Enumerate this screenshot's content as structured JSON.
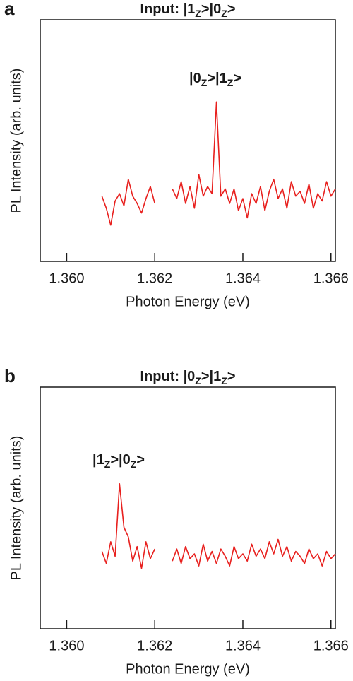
{
  "chart_data": [
    {
      "type": "line",
      "panel_label": "a",
      "title": "Input: |1Z>|0Z>",
      "annotation": "|0Z>|1Z>",
      "xlabel": "Photon Energy (eV)",
      "ylabel": "PL Intensity (arb. units)",
      "xlim": [
        1.3594,
        1.3661
      ],
      "ylim": [
        0,
        1
      ],
      "xticks": [
        {
          "value": 1.36,
          "label": "1.360"
        },
        1.362,
        1.364,
        1.366
      ],
      "x": [
        1.3608,
        1.3609,
        1.361,
        1.3611,
        1.3612,
        1.3613,
        1.3614,
        1.3615,
        1.3616,
        1.3617,
        1.3618,
        1.3619,
        1.362,
        1.3622,
        1.3624,
        1.3625,
        1.3626,
        1.3627,
        1.3628,
        1.3629,
        1.363,
        1.3631,
        1.3632,
        1.3633,
        1.3634,
        1.3635,
        1.3636,
        1.3637,
        1.3638,
        1.3639,
        1.364,
        1.3641,
        1.3642,
        1.3643,
        1.3644,
        1.3645,
        1.3646,
        1.3647,
        1.3648,
        1.3649,
        1.365,
        1.3651,
        1.3652,
        1.3653,
        1.3654,
        1.3655,
        1.3656,
        1.3657,
        1.3658,
        1.3659,
        1.366,
        1.3661
      ],
      "series": [
        {
          "color": "#e8201e",
          "values": [
            0.27,
            0.22,
            0.15,
            0.25,
            0.28,
            0.23,
            0.34,
            0.27,
            0.24,
            0.2,
            0.26,
            0.31,
            0.24,
            null,
            0.3,
            0.26,
            0.33,
            0.24,
            0.31,
            0.22,
            0.36,
            0.27,
            0.31,
            0.28,
            0.66,
            0.27,
            0.3,
            0.24,
            0.3,
            0.21,
            0.26,
            0.18,
            0.28,
            0.24,
            0.31,
            0.21,
            0.29,
            0.34,
            0.26,
            0.3,
            0.22,
            0.33,
            0.27,
            0.29,
            0.24,
            0.32,
            0.22,
            0.28,
            0.25,
            0.33,
            0.27,
            0.3
          ]
        }
      ]
    },
    {
      "type": "line",
      "panel_label": "b",
      "title": "Input: |0Z>|1Z>",
      "annotation": "|1Z>|0Z>",
      "xlabel": "Photon Energy (eV)",
      "ylabel": "PL Intensity (arb. units)",
      "xlim": [
        1.3594,
        1.3661
      ],
      "ylim": [
        0,
        1
      ],
      "xticks": [
        {
          "value": 1.36,
          "label": "1.360"
        },
        1.362,
        1.364,
        1.366
      ],
      "x": [
        1.3608,
        1.3609,
        1.361,
        1.3611,
        1.3612,
        1.3613,
        1.3614,
        1.3615,
        1.3616,
        1.3617,
        1.3618,
        1.3619,
        1.362,
        1.3622,
        1.3624,
        1.3625,
        1.3626,
        1.3627,
        1.3628,
        1.3629,
        1.363,
        1.3631,
        1.3632,
        1.3633,
        1.3634,
        1.3635,
        1.3636,
        1.3637,
        1.3638,
        1.3639,
        1.364,
        1.3641,
        1.3642,
        1.3643,
        1.3644,
        1.3645,
        1.3646,
        1.3647,
        1.3648,
        1.3649,
        1.365,
        1.3651,
        1.3652,
        1.3653,
        1.3654,
        1.3655,
        1.3656,
        1.3657,
        1.3658,
        1.3659,
        1.366,
        1.3661
      ],
      "series": [
        {
          "color": "#e8201e",
          "values": [
            0.32,
            0.27,
            0.36,
            0.3,
            0.6,
            0.42,
            0.38,
            0.28,
            0.34,
            0.25,
            0.36,
            0.29,
            0.33,
            null,
            0.28,
            0.33,
            0.27,
            0.34,
            0.29,
            0.31,
            0.26,
            0.35,
            0.28,
            0.32,
            0.27,
            0.33,
            0.3,
            0.26,
            0.34,
            0.29,
            0.31,
            0.28,
            0.35,
            0.3,
            0.33,
            0.29,
            0.36,
            0.31,
            0.37,
            0.3,
            0.34,
            0.28,
            0.32,
            0.3,
            0.27,
            0.33,
            0.29,
            0.31,
            0.26,
            0.32,
            0.29,
            0.31
          ]
        }
      ]
    }
  ]
}
